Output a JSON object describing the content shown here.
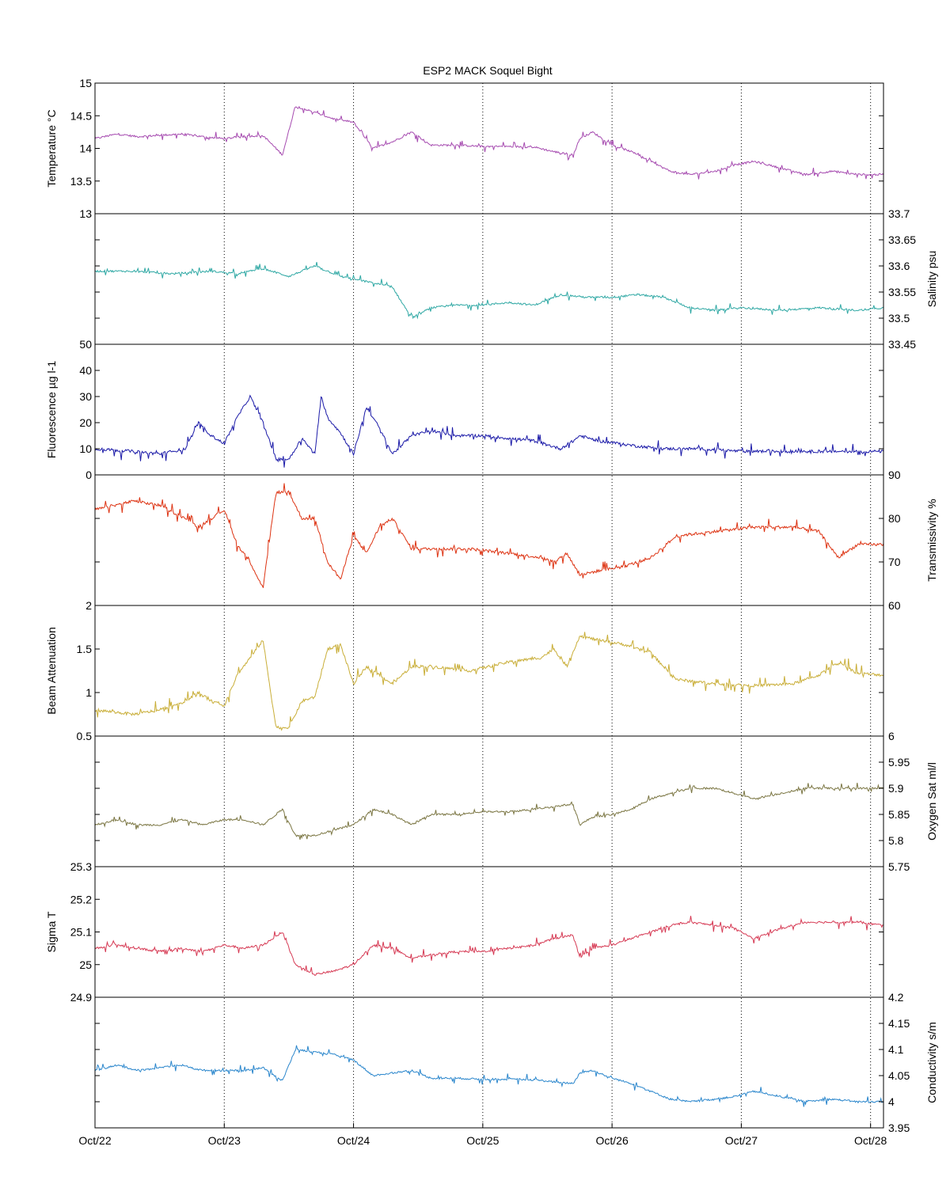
{
  "chart_data": {
    "type": "line",
    "title": "ESP2 MACK  Soquel Bight",
    "x_start_day": 22,
    "x_ticks": [
      "Oct/22",
      "Oct/23",
      "Oct/24",
      "Oct/25",
      "Oct/26",
      "Oct/27",
      "Oct/28"
    ],
    "xlim": [
      0,
      6.1
    ],
    "grid": "x-dotted",
    "panels": [
      {
        "name": "Temperature",
        "ylabel": "Temperature °C",
        "axis_side": "left",
        "ylim": [
          13,
          15
        ],
        "ticks": [
          "13",
          "13.5",
          "14",
          "14.5",
          "15"
        ],
        "tick_values": [
          13,
          13.5,
          14,
          14.5,
          15
        ],
        "color": "#a64bb0",
        "x": [
          0,
          0.17,
          0.33,
          0.5,
          0.67,
          0.83,
          1.0,
          1.15,
          1.3,
          1.45,
          1.55,
          1.7,
          1.85,
          2.0,
          2.15,
          2.3,
          2.45,
          2.6,
          2.8,
          3.0,
          3.2,
          3.4,
          3.55,
          3.7,
          3.75,
          3.85,
          4.0,
          4.15,
          4.3,
          4.45,
          4.6,
          4.8,
          4.95,
          5.1,
          5.3,
          5.5,
          5.7,
          5.9,
          6.1
        ],
        "y": [
          14.15,
          14.22,
          14.18,
          14.2,
          14.22,
          14.18,
          14.15,
          14.18,
          14.2,
          13.9,
          14.65,
          14.55,
          14.45,
          14.4,
          14.0,
          14.1,
          14.25,
          14.05,
          14.05,
          14.03,
          14.03,
          14.02,
          13.95,
          13.9,
          14.15,
          14.25,
          14.05,
          13.95,
          13.8,
          13.65,
          13.6,
          13.65,
          13.75,
          13.8,
          13.7,
          13.6,
          13.65,
          13.6,
          13.6
        ],
        "noise": 0.35
      },
      {
        "name": "Salinity",
        "ylabel": "Salinity psu",
        "axis_side": "right",
        "ylim": [
          33.45,
          33.7
        ],
        "ticks": [
          "33.45",
          "33.5",
          "33.55",
          "33.6",
          "33.65",
          "33.7"
        ],
        "tick_values": [
          33.45,
          33.5,
          33.55,
          33.6,
          33.65,
          33.7
        ],
        "color": "#2fa8a4",
        "x": [
          0,
          0.3,
          0.6,
          0.9,
          1.1,
          1.3,
          1.5,
          1.7,
          1.9,
          2.1,
          2.3,
          2.45,
          2.6,
          2.8,
          3.0,
          3.2,
          3.4,
          3.6,
          3.8,
          4.0,
          4.2,
          4.4,
          4.6,
          4.8,
          5.0,
          5.3,
          5.6,
          5.9,
          6.1
        ],
        "y": [
          33.59,
          33.59,
          33.585,
          33.59,
          33.585,
          33.595,
          33.58,
          33.6,
          33.58,
          33.57,
          33.56,
          33.5,
          33.52,
          33.525,
          33.525,
          33.53,
          33.525,
          33.545,
          33.54,
          33.54,
          33.545,
          33.54,
          33.52,
          33.515,
          33.52,
          33.515,
          33.52,
          33.515,
          33.52
        ],
        "noise": 0.35
      },
      {
        "name": "Fluorescence",
        "ylabel": "Fluorescence µg l-1",
        "axis_side": "left",
        "ylim": [
          0,
          50
        ],
        "ticks": [
          "0",
          "10",
          "20",
          "30",
          "40",
          "50"
        ],
        "tick_values": [
          0,
          10,
          20,
          30,
          40,
          50
        ],
        "color": "#1b1aa8",
        "x": [
          0,
          0.3,
          0.5,
          0.7,
          0.8,
          0.9,
          1.0,
          1.1,
          1.2,
          1.3,
          1.4,
          1.5,
          1.6,
          1.7,
          1.75,
          1.8,
          1.9,
          2.0,
          2.1,
          2.2,
          2.3,
          2.45,
          2.6,
          2.8,
          3.0,
          3.2,
          3.4,
          3.6,
          3.7,
          3.75,
          3.9,
          4.2,
          4.4,
          4.7,
          5.0,
          5.3,
          5.6,
          5.9,
          6.1
        ],
        "y": [
          10,
          9,
          8,
          10,
          20,
          15,
          12,
          22,
          30,
          20,
          6,
          6,
          14,
          8,
          30,
          22,
          16,
          8,
          26,
          18,
          8,
          15,
          17,
          15,
          15,
          14,
          13,
          10,
          13,
          15,
          13,
          11,
          10,
          10,
          9,
          9,
          9,
          9,
          9
        ],
        "noise": 0.55
      },
      {
        "name": "Transmissivity",
        "ylabel": "Transmissivity %",
        "axis_side": "right",
        "ylim": [
          60,
          90
        ],
        "ticks": [
          "60",
          "70",
          "80",
          "90"
        ],
        "tick_values": [
          60,
          70,
          80,
          90
        ],
        "color": "#dd3312",
        "x": [
          0,
          0.3,
          0.5,
          0.7,
          0.8,
          0.9,
          1.0,
          1.1,
          1.2,
          1.3,
          1.4,
          1.5,
          1.6,
          1.7,
          1.8,
          1.9,
          2.0,
          2.1,
          2.2,
          2.3,
          2.45,
          2.6,
          2.9,
          3.2,
          3.45,
          3.55,
          3.65,
          3.75,
          3.9,
          4.1,
          4.3,
          4.5,
          4.8,
          5.1,
          5.4,
          5.6,
          5.75,
          5.9,
          6.1
        ],
        "y": [
          82,
          84,
          83,
          80,
          78,
          80,
          82,
          74,
          70,
          64,
          86,
          86,
          80,
          80,
          70,
          66,
          76,
          72,
          78,
          80,
          73,
          73,
          73,
          72,
          71,
          70,
          72,
          67,
          68,
          69,
          71,
          76,
          77,
          78,
          78,
          77,
          71,
          74,
          74
        ],
        "noise": 0.55
      },
      {
        "name": "Beam Attenuation",
        "ylabel": "Beam Attenuation",
        "axis_side": "left",
        "ylim": [
          0.5,
          2
        ],
        "ticks": [
          "0.5",
          "1",
          "1.5",
          "2"
        ],
        "tick_values": [
          0.5,
          1,
          1.5,
          2
        ],
        "color": "#c9ae38",
        "x": [
          0,
          0.3,
          0.5,
          0.7,
          0.8,
          0.9,
          1.0,
          1.1,
          1.2,
          1.3,
          1.4,
          1.5,
          1.6,
          1.7,
          1.8,
          1.9,
          2.0,
          2.1,
          2.2,
          2.3,
          2.45,
          2.6,
          2.9,
          3.2,
          3.45,
          3.55,
          3.65,
          3.75,
          3.9,
          4.1,
          4.3,
          4.5,
          4.8,
          5.1,
          5.4,
          5.6,
          5.75,
          5.9,
          6.1
        ],
        "y": [
          0.8,
          0.75,
          0.8,
          0.9,
          1.0,
          0.9,
          0.85,
          1.2,
          1.4,
          1.6,
          0.6,
          0.6,
          0.9,
          0.95,
          1.5,
          1.55,
          1.1,
          1.3,
          1.2,
          1.1,
          1.3,
          1.3,
          1.25,
          1.35,
          1.4,
          1.5,
          1.3,
          1.65,
          1.6,
          1.55,
          1.45,
          1.15,
          1.1,
          1.08,
          1.1,
          1.2,
          1.35,
          1.22,
          1.2
        ],
        "noise": 0.55
      },
      {
        "name": "Oxygen Sat",
        "ylabel": "Oxygen Sat ml/l",
        "axis_side": "right",
        "ylim": [
          5.75,
          6
        ],
        "ticks": [
          "5.75",
          "5.8",
          "5.85",
          "5.9",
          "5.95",
          "6"
        ],
        "tick_values": [
          5.75,
          5.8,
          5.85,
          5.9,
          5.95,
          6
        ],
        "color": "#7b7643",
        "x": [
          0,
          0.17,
          0.33,
          0.5,
          0.67,
          0.83,
          1.0,
          1.15,
          1.3,
          1.45,
          1.55,
          1.7,
          1.85,
          2.0,
          2.15,
          2.3,
          2.45,
          2.6,
          2.8,
          3.0,
          3.2,
          3.4,
          3.55,
          3.7,
          3.75,
          3.85,
          4.0,
          4.15,
          4.3,
          4.45,
          4.6,
          4.8,
          4.95,
          5.1,
          5.3,
          5.5,
          5.7,
          5.9,
          6.1
        ],
        "y": [
          5.83,
          5.84,
          5.83,
          5.83,
          5.84,
          5.83,
          5.84,
          5.84,
          5.83,
          5.86,
          5.81,
          5.81,
          5.82,
          5.83,
          5.86,
          5.85,
          5.83,
          5.85,
          5.85,
          5.855,
          5.855,
          5.86,
          5.865,
          5.87,
          5.83,
          5.845,
          5.85,
          5.86,
          5.88,
          5.89,
          5.9,
          5.9,
          5.89,
          5.88,
          5.89,
          5.9,
          5.9,
          5.9,
          5.9
        ],
        "noise": 0.35
      },
      {
        "name": "Sigma T",
        "ylabel": "Sigma T",
        "axis_side": "left",
        "ylim": [
          24.9,
          25.3
        ],
        "ticks": [
          "24.9",
          "25",
          "25.1",
          "25.2",
          "25.3"
        ],
        "tick_values": [
          24.9,
          25.0,
          25.1,
          25.2,
          25.3
        ],
        "color": "#d63a54",
        "x": [
          0,
          0.17,
          0.33,
          0.5,
          0.67,
          0.83,
          1.0,
          1.15,
          1.3,
          1.45,
          1.55,
          1.7,
          1.85,
          2.0,
          2.15,
          2.3,
          2.45,
          2.6,
          2.8,
          3.0,
          3.2,
          3.4,
          3.55,
          3.7,
          3.75,
          3.85,
          4.0,
          4.15,
          4.3,
          4.45,
          4.6,
          4.8,
          4.95,
          5.1,
          5.3,
          5.5,
          5.7,
          5.9,
          6.1
        ],
        "y": [
          25.05,
          25.06,
          25.05,
          25.04,
          25.05,
          25.04,
          25.06,
          25.05,
          25.06,
          25.1,
          25.0,
          24.97,
          24.98,
          25.0,
          25.06,
          25.05,
          25.02,
          25.03,
          25.04,
          25.04,
          25.05,
          25.06,
          25.08,
          25.09,
          25.02,
          25.05,
          25.06,
          25.08,
          25.1,
          25.12,
          25.13,
          25.12,
          25.11,
          25.08,
          25.11,
          25.13,
          25.13,
          25.13,
          25.12
        ],
        "noise": 0.4
      },
      {
        "name": "Conductivity",
        "ylabel": "Conductivity s/m",
        "axis_side": "right",
        "ylim": [
          3.95,
          4.2
        ],
        "ticks": [
          "3.95",
          "4",
          "4.05",
          "4.1",
          "4.15",
          "4.2"
        ],
        "tick_values": [
          3.95,
          4.0,
          4.05,
          4.1,
          4.15,
          4.2
        ],
        "color": "#2a86cc",
        "x": [
          0,
          0.17,
          0.33,
          0.5,
          0.67,
          0.83,
          1.0,
          1.15,
          1.3,
          1.45,
          1.55,
          1.7,
          1.85,
          2.0,
          2.15,
          2.3,
          2.45,
          2.6,
          2.8,
          3.0,
          3.2,
          3.4,
          3.55,
          3.7,
          3.75,
          3.85,
          4.0,
          4.15,
          4.3,
          4.45,
          4.6,
          4.8,
          4.95,
          5.1,
          5.3,
          5.5,
          5.7,
          5.9,
          6.1
        ],
        "y": [
          4.06,
          4.07,
          4.06,
          4.065,
          4.07,
          4.06,
          4.06,
          4.06,
          4.065,
          4.04,
          4.1,
          4.095,
          4.09,
          4.08,
          4.05,
          4.055,
          4.06,
          4.045,
          4.045,
          4.043,
          4.043,
          4.042,
          4.038,
          4.035,
          4.055,
          4.06,
          4.045,
          4.035,
          4.02,
          4.005,
          4.0,
          4.005,
          4.01,
          4.02,
          4.01,
          4.0,
          4.005,
          4.0,
          4.0
        ],
        "noise": 0.35
      }
    ]
  }
}
